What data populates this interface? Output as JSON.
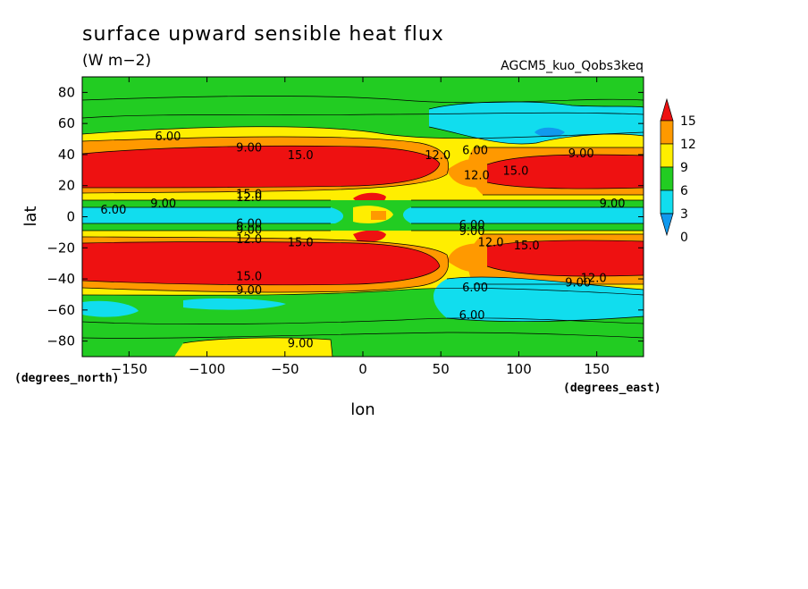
{
  "title": "surface upward sensible heat flux",
  "units": "(W m−2)",
  "model": "AGCM5_kuo_Qobs3keq",
  "chart_data": {
    "type": "heatmap",
    "xlabel": "lon",
    "ylabel": "lat",
    "xunits": "(degrees_east)",
    "yunits": "(degrees_north)",
    "xlim": [
      -180,
      180
    ],
    "ylim": [
      -90,
      90
    ],
    "xticks": [
      -150,
      -100,
      -50,
      0,
      50,
      100,
      150
    ],
    "xtick_labels": [
      "−150",
      "−100",
      "−50",
      "0",
      "50",
      "100",
      "150"
    ],
    "yticks": [
      -80,
      -60,
      -40,
      -20,
      0,
      20,
      40,
      60,
      80
    ],
    "ytick_labels": [
      "−80",
      "−60",
      "−40",
      "−20",
      "0",
      "20",
      "40",
      "60",
      "80"
    ],
    "colorbar": {
      "levels": [
        "15",
        "12",
        "9",
        "6",
        "3",
        "0"
      ],
      "colors": [
        "#ee1111",
        "#ff9900",
        "#ffee00",
        "#22cc22",
        "#11ddee",
        "#1199ee"
      ]
    },
    "contour_labels": [
      {
        "text": "6.00",
        "lon": -125,
        "lat": 52
      },
      {
        "text": "9.00",
        "lon": -73,
        "lat": 45
      },
      {
        "text": "15.0",
        "lon": -40,
        "lat": 40
      },
      {
        "text": "12.0",
        "lon": 48,
        "lat": 40
      },
      {
        "text": "6.00",
        "lon": 72,
        "lat": 43
      },
      {
        "text": "12.0",
        "lon": 73,
        "lat": 27
      },
      {
        "text": "15.0",
        "lon": 98,
        "lat": 30
      },
      {
        "text": "9.00",
        "lon": 140,
        "lat": 41
      },
      {
        "text": "15.0",
        "lon": -73,
        "lat": 15
      },
      {
        "text": "12.0",
        "lon": -73,
        "lat": 13
      },
      {
        "text": "9.00",
        "lon": -128,
        "lat": 9
      },
      {
        "text": "9.00",
        "lon": 160,
        "lat": 9
      },
      {
        "text": "6.00",
        "lon": -160,
        "lat": 5
      },
      {
        "text": "6.00",
        "lon": -73,
        "lat": -4
      },
      {
        "text": "9.00",
        "lon": -73,
        "lat": -8
      },
      {
        "text": "12.0",
        "lon": -73,
        "lat": -14
      },
      {
        "text": "6.00",
        "lon": 70,
        "lat": -5
      },
      {
        "text": "9.00",
        "lon": 70,
        "lat": -9
      },
      {
        "text": "15.0",
        "lon": -40,
        "lat": -16
      },
      {
        "text": "12.0",
        "lon": 82,
        "lat": -16
      },
      {
        "text": "15.0",
        "lon": 105,
        "lat": -18
      },
      {
        "text": "15.0",
        "lon": -73,
        "lat": -38
      },
      {
        "text": "9.00",
        "lon": -73,
        "lat": -47
      },
      {
        "text": "12.0",
        "lon": 148,
        "lat": -39
      },
      {
        "text": "9.00",
        "lon": 138,
        "lat": -42
      },
      {
        "text": "6.00",
        "lon": 72,
        "lat": -45
      },
      {
        "text": "6.00",
        "lon": 70,
        "lat": -63
      },
      {
        "text": "9.00",
        "lon": -40,
        "lat": -81
      }
    ]
  }
}
